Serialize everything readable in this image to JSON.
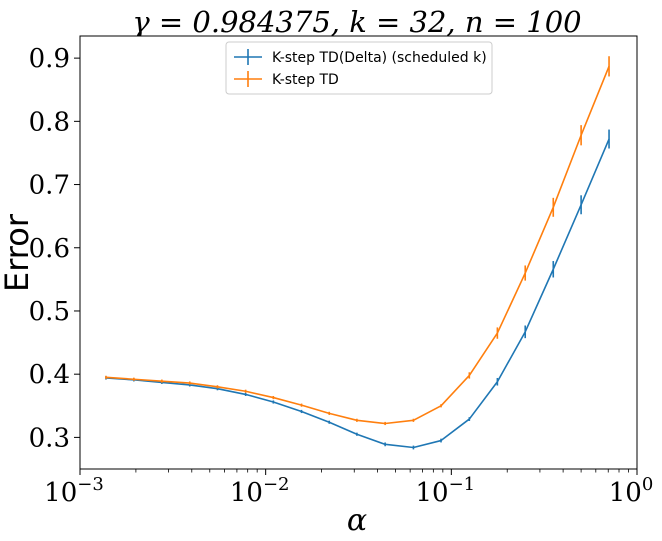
{
  "chart_data": {
    "type": "line",
    "title": "γ = 0.984375, k = 32, n = 100",
    "xlabel": "α",
    "ylabel": "Error",
    "xscale": "log",
    "xlim": [
      0.001,
      1
    ],
    "ylim": [
      0.25,
      0.935
    ],
    "xticks": [
      {
        "value": 0.001,
        "base": "10",
        "exp": "−3"
      },
      {
        "value": 0.01,
        "base": "10",
        "exp": "−2"
      },
      {
        "value": 0.1,
        "base": "10",
        "exp": "−1"
      },
      {
        "value": 1,
        "base": "10",
        "exp": "0"
      }
    ],
    "yticks": [
      {
        "value": 0.3,
        "label": "0.3"
      },
      {
        "value": 0.4,
        "label": "0.4"
      },
      {
        "value": 0.5,
        "label": "0.5"
      },
      {
        "value": 0.6,
        "label": "0.6"
      },
      {
        "value": 0.7,
        "label": "0.7"
      },
      {
        "value": 0.8,
        "label": "0.8"
      },
      {
        "value": 0.9,
        "label": "0.9"
      }
    ],
    "grid": false,
    "legend_position": "top-center",
    "series": [
      {
        "name": "K-step TD(Delta) (scheduled k)",
        "color": "#1f77b4",
        "points": [
          {
            "x": 0.00138,
            "y": 0.394,
            "err": 0.001
          },
          {
            "x": 0.00195,
            "y": 0.391,
            "err": 0.001
          },
          {
            "x": 0.00276,
            "y": 0.387,
            "err": 0.001
          },
          {
            "x": 0.0039,
            "y": 0.383,
            "err": 0.001
          },
          {
            "x": 0.0055,
            "y": 0.377,
            "err": 0.001
          },
          {
            "x": 0.0078,
            "y": 0.368,
            "err": 0.001
          },
          {
            "x": 0.011,
            "y": 0.356,
            "err": 0.001
          },
          {
            "x": 0.0156,
            "y": 0.341,
            "err": 0.002
          },
          {
            "x": 0.022,
            "y": 0.324,
            "err": 0.002
          },
          {
            "x": 0.031,
            "y": 0.305,
            "err": 0.002
          },
          {
            "x": 0.044,
            "y": 0.289,
            "err": 0.003
          },
          {
            "x": 0.0625,
            "y": 0.284,
            "err": 0.003
          },
          {
            "x": 0.088,
            "y": 0.295,
            "err": 0.003
          },
          {
            "x": 0.125,
            "y": 0.329,
            "err": 0.003
          },
          {
            "x": 0.177,
            "y": 0.388,
            "err": 0.006
          },
          {
            "x": 0.25,
            "y": 0.467,
            "err": 0.01
          },
          {
            "x": 0.354,
            "y": 0.566,
            "err": 0.013
          },
          {
            "x": 0.5,
            "y": 0.668,
            "err": 0.015
          },
          {
            "x": 0.707,
            "y": 0.772,
            "err": 0.015
          }
        ]
      },
      {
        "name": "K-step TD",
        "color": "#ff7f0e",
        "points": [
          {
            "x": 0.00138,
            "y": 0.395,
            "err": 0.001
          },
          {
            "x": 0.00195,
            "y": 0.392,
            "err": 0.001
          },
          {
            "x": 0.00276,
            "y": 0.389,
            "err": 0.001
          },
          {
            "x": 0.0039,
            "y": 0.386,
            "err": 0.001
          },
          {
            "x": 0.0055,
            "y": 0.38,
            "err": 0.001
          },
          {
            "x": 0.0078,
            "y": 0.373,
            "err": 0.001
          },
          {
            "x": 0.011,
            "y": 0.363,
            "err": 0.001
          },
          {
            "x": 0.0156,
            "y": 0.351,
            "err": 0.001
          },
          {
            "x": 0.022,
            "y": 0.338,
            "err": 0.001
          },
          {
            "x": 0.031,
            "y": 0.327,
            "err": 0.001
          },
          {
            "x": 0.044,
            "y": 0.322,
            "err": 0.002
          },
          {
            "x": 0.0625,
            "y": 0.327,
            "err": 0.002
          },
          {
            "x": 0.088,
            "y": 0.35,
            "err": 0.002
          },
          {
            "x": 0.125,
            "y": 0.398,
            "err": 0.005
          },
          {
            "x": 0.177,
            "y": 0.465,
            "err": 0.009
          },
          {
            "x": 0.25,
            "y": 0.56,
            "err": 0.012
          },
          {
            "x": 0.354,
            "y": 0.664,
            "err": 0.015
          },
          {
            "x": 0.5,
            "y": 0.778,
            "err": 0.016
          },
          {
            "x": 0.707,
            "y": 0.887,
            "err": 0.016
          }
        ]
      }
    ]
  }
}
